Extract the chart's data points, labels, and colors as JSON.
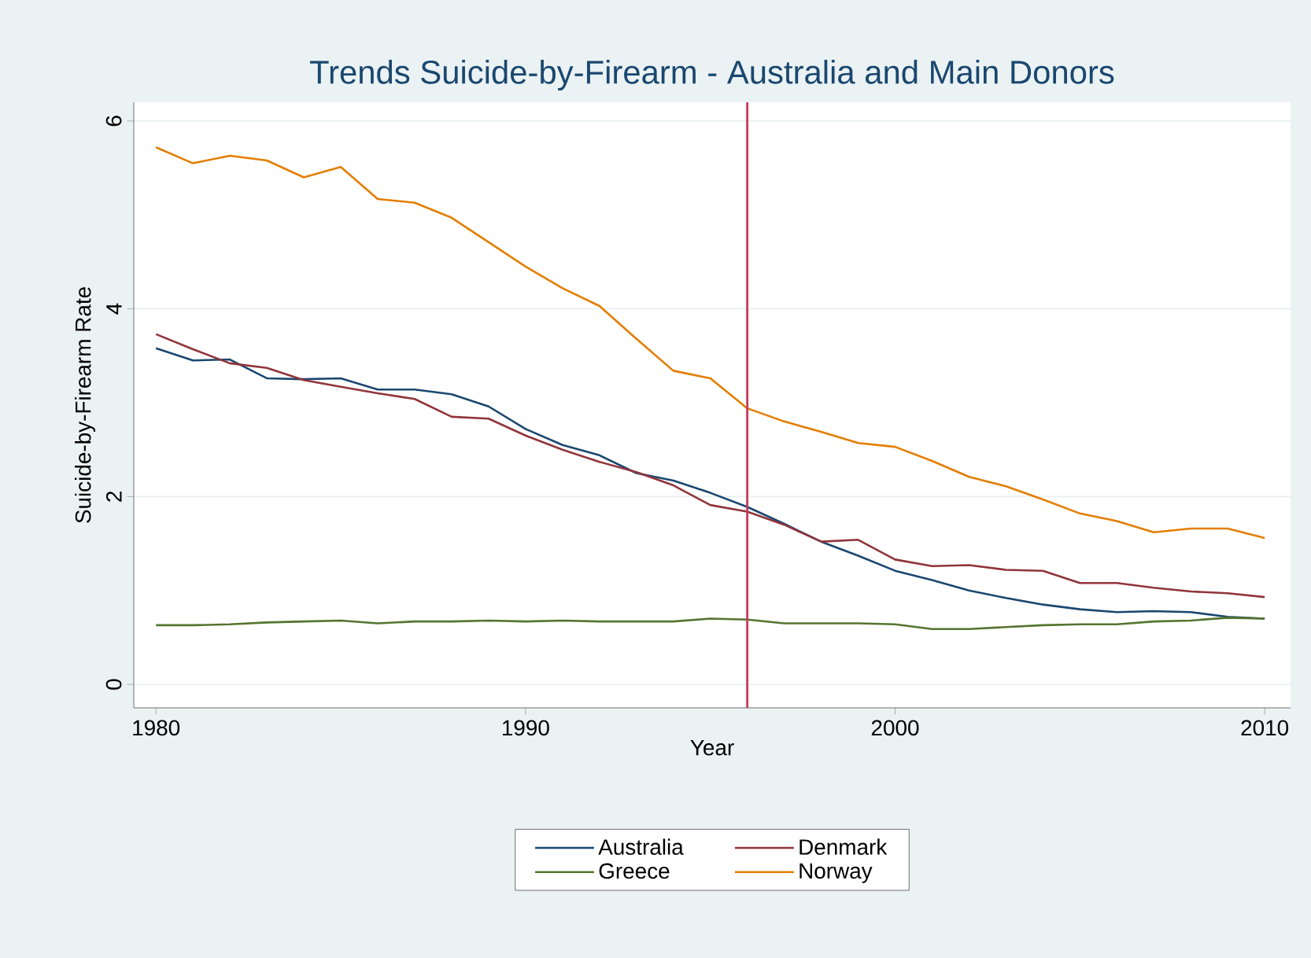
{
  "chart_data": {
    "type": "line",
    "title": "Trends Suicide-by-Firearm - Australia and Main Donors",
    "xlabel": "Year",
    "ylabel": "Suicide-by-Firearm Rate",
    "x": [
      1980,
      1981,
      1982,
      1983,
      1984,
      1985,
      1986,
      1987,
      1988,
      1989,
      1990,
      1991,
      1992,
      1993,
      1994,
      1995,
      1996,
      1997,
      1998,
      1999,
      2000,
      2001,
      2002,
      2003,
      2004,
      2005,
      2006,
      2007,
      2008,
      2009,
      2010
    ],
    "series": [
      {
        "name": "Australia",
        "color": "#1a476f",
        "values": [
          3.58,
          3.45,
          3.46,
          3.26,
          3.25,
          3.26,
          3.14,
          3.14,
          3.09,
          2.96,
          2.72,
          2.55,
          2.44,
          2.25,
          2.17,
          2.04,
          1.89,
          1.71,
          1.52,
          1.37,
          1.21,
          1.11,
          1.0,
          0.92,
          0.85,
          0.8,
          0.77,
          0.78,
          0.77,
          0.72,
          0.7
        ]
      },
      {
        "name": "Denmark",
        "color": "#90353b",
        "values": [
          3.73,
          3.57,
          3.42,
          3.37,
          3.24,
          3.17,
          3.1,
          3.04,
          2.85,
          2.83,
          2.65,
          2.5,
          2.37,
          2.26,
          2.12,
          1.91,
          1.84,
          1.7,
          1.52,
          1.54,
          1.33,
          1.26,
          1.27,
          1.22,
          1.21,
          1.08,
          1.08,
          1.03,
          0.99,
          0.97,
          0.93
        ]
      },
      {
        "name": "Greece",
        "color": "#55752f",
        "values": [
          0.63,
          0.63,
          0.64,
          0.66,
          0.67,
          0.68,
          0.65,
          0.67,
          0.67,
          0.68,
          0.67,
          0.68,
          0.67,
          0.67,
          0.67,
          0.7,
          0.69,
          0.65,
          0.65,
          0.65,
          0.64,
          0.59,
          0.59,
          0.61,
          0.63,
          0.64,
          0.64,
          0.67,
          0.68,
          0.71,
          0.7
        ]
      },
      {
        "name": "Norway",
        "color": "#e37e00",
        "values": [
          5.72,
          5.55,
          5.63,
          5.58,
          5.4,
          5.51,
          5.17,
          5.13,
          4.97,
          4.71,
          4.45,
          4.22,
          4.03,
          3.68,
          3.34,
          3.26,
          2.94,
          2.8,
          2.69,
          2.57,
          2.53,
          2.38,
          2.21,
          2.11,
          1.97,
          1.82,
          1.74,
          1.62,
          1.66,
          1.66,
          1.56
        ]
      }
    ],
    "xlim": [
      1979.4,
      2010.7
    ],
    "xticks": [
      1980,
      1990,
      2000,
      2010
    ],
    "ylim": [
      -0.25,
      6.2
    ],
    "yticks": [
      0,
      2,
      4,
      6
    ],
    "ref_lines": [
      {
        "axis": "x",
        "value": 1996,
        "color": "#c8385a"
      }
    ],
    "grid": "y",
    "legend": "bottom",
    "marker": "none",
    "line_style": "solid"
  }
}
